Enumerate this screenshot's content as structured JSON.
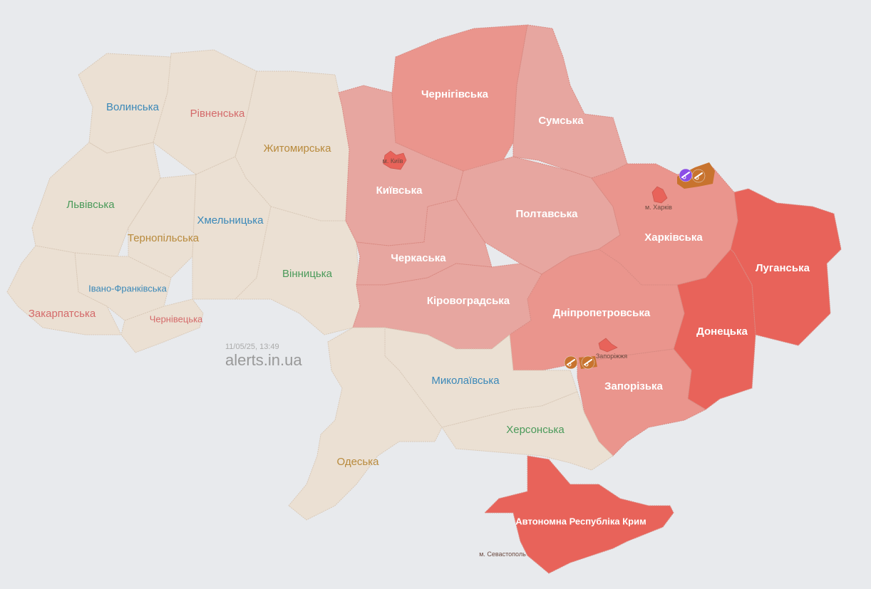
{
  "timestamp": "11/05/25, 13:49",
  "brand": "alerts.in.ua",
  "colors": {
    "background": "#e8eaed",
    "no_alert": "#ebe0d3",
    "alert_light": "#e7a6a0",
    "alert_medium": "#ea958d",
    "alert_high": "#e8635a",
    "artillery": "#c8732e",
    "ground": "#8b4ee6"
  },
  "regions": [
    {
      "name": "Волинська",
      "status": "none",
      "label_color": "#3a88b8"
    },
    {
      "name": "Рівненська",
      "status": "none",
      "label_color": "#d46a6a"
    },
    {
      "name": "Житомирська",
      "status": "none",
      "label_color": "#b88a3c"
    },
    {
      "name": "Львівська",
      "status": "none",
      "label_color": "#4a9a5a"
    },
    {
      "name": "Тернопільська",
      "status": "none",
      "label_color": "#b88a3c"
    },
    {
      "name": "Хмельницька",
      "status": "none",
      "label_color": "#3a88b8"
    },
    {
      "name": "Івано-Франківська",
      "status": "none",
      "label_color": "#3a88b8"
    },
    {
      "name": "Закарпатська",
      "status": "none",
      "label_color": "#d46a6a"
    },
    {
      "name": "Чернівецька",
      "status": "none",
      "label_color": "#d46a6a"
    },
    {
      "name": "Вінницька",
      "status": "none",
      "label_color": "#4a9a5a"
    },
    {
      "name": "Київська",
      "status": "light",
      "label_color": "#ffffff"
    },
    {
      "name": "Чернігівська",
      "status": "medium",
      "label_color": "#ffffff"
    },
    {
      "name": "Сумська",
      "status": "light",
      "label_color": "#ffffff"
    },
    {
      "name": "Полтавська",
      "status": "light",
      "label_color": "#ffffff"
    },
    {
      "name": "Черкаська",
      "status": "light",
      "label_color": "#ffffff"
    },
    {
      "name": "Кіровоградська",
      "status": "light",
      "label_color": "#ffffff"
    },
    {
      "name": "Харківська",
      "status": "medium",
      "label_color": "#ffffff"
    },
    {
      "name": "Луганська",
      "status": "high",
      "label_color": "#ffffff"
    },
    {
      "name": "Донецька",
      "status": "high",
      "label_color": "#ffffff"
    },
    {
      "name": "Дніпропетровська",
      "status": "medium",
      "label_color": "#ffffff"
    },
    {
      "name": "Запорізька",
      "status": "medium",
      "label_color": "#ffffff"
    },
    {
      "name": "Миколаївська",
      "status": "none",
      "label_color": "#3a88b8"
    },
    {
      "name": "Херсонська",
      "status": "none",
      "label_color": "#4a9a5a"
    },
    {
      "name": "Одеська",
      "status": "none",
      "label_color": "#b88a3c"
    },
    {
      "name": "Автономна Республіка Крим",
      "status": "high",
      "label_color": "#ffffff"
    }
  ],
  "cities": [
    {
      "name": "м. Київ",
      "status": "high"
    },
    {
      "name": "м. Харків",
      "status": "high"
    },
    {
      "name": "Запоріжжя",
      "status": "high"
    },
    {
      "name": "м. Севастополь",
      "status": "none"
    }
  ],
  "threat_icons": [
    {
      "icon": "ground-assault-icon",
      "region": "Харківська"
    },
    {
      "icon": "artillery-icon",
      "region": "Харківська"
    },
    {
      "icon": "artillery-icon",
      "region": "Запорізька"
    },
    {
      "icon": "artillery-icon",
      "region": "Запорізька"
    }
  ]
}
